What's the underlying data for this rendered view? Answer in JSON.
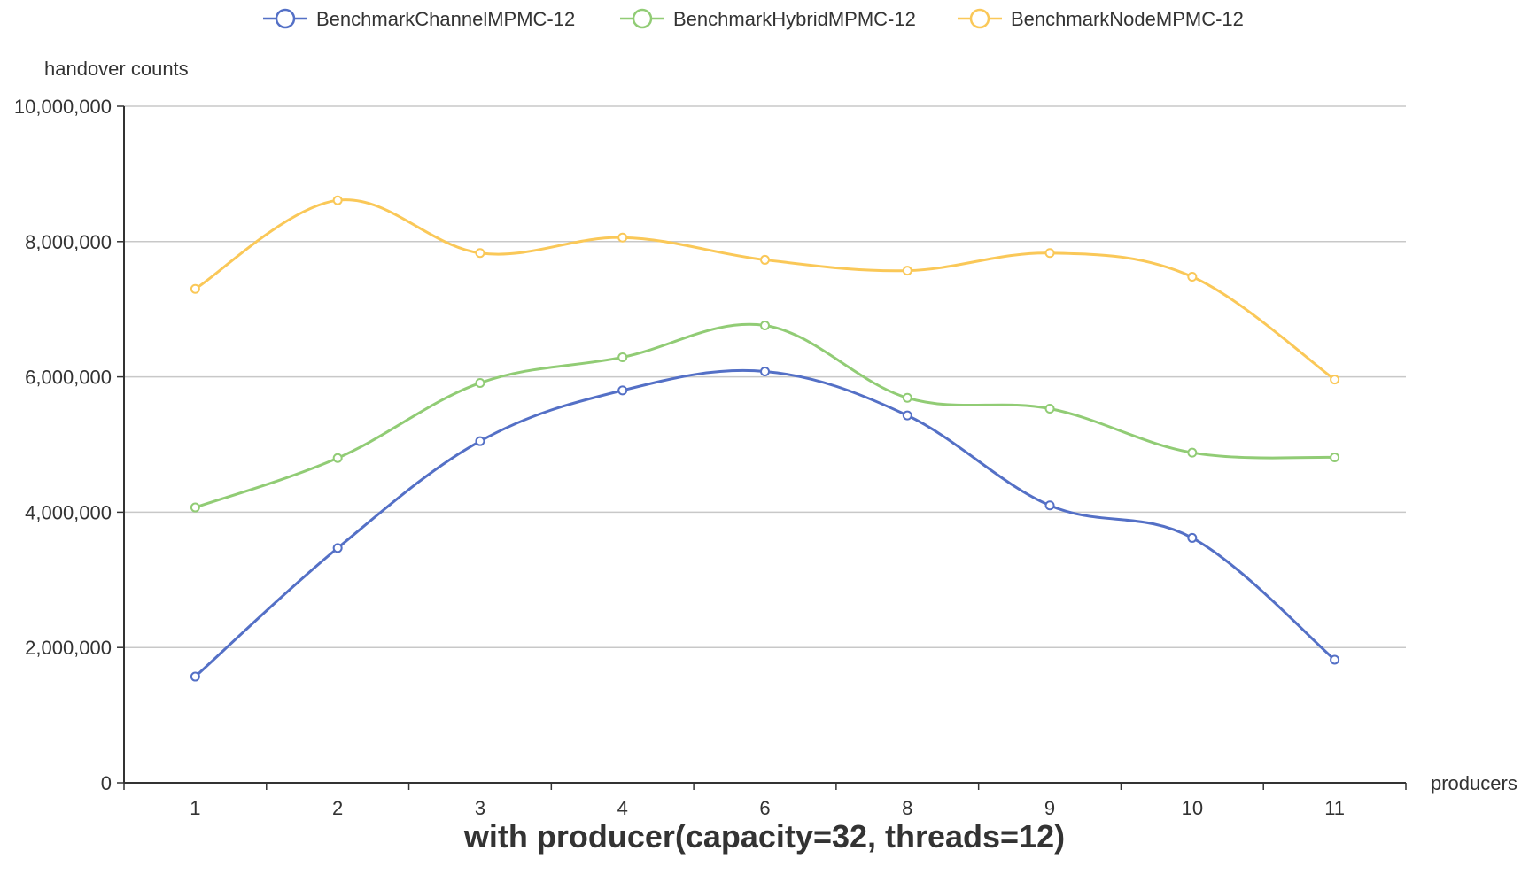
{
  "chart_data": {
    "type": "line",
    "smooth": true,
    "title": "with producer(capacity=32, threads=12)",
    "xlabel": "producers",
    "ylabel": "handover counts",
    "categories": [
      "1",
      "2",
      "3",
      "4",
      "6",
      "8",
      "9",
      "10",
      "11"
    ],
    "ylim": [
      0,
      10000000
    ],
    "yticks": [
      0,
      2000000,
      4000000,
      6000000,
      8000000,
      10000000
    ],
    "ytick_labels": [
      "0",
      "2,000,000",
      "4,000,000",
      "6,000,000",
      "8,000,000",
      "10,000,000"
    ],
    "grid": true,
    "legend_position": "top-center",
    "series": [
      {
        "name": "BenchmarkChannelMPMC-12",
        "color": "#5470c6",
        "values": [
          1570000,
          3470000,
          5050000,
          5800000,
          6080000,
          5430000,
          4100000,
          3620000,
          1820000
        ]
      },
      {
        "name": "BenchmarkHybridMPMC-12",
        "color": "#91cc75",
        "values": [
          4070000,
          4800000,
          5910000,
          6290000,
          6760000,
          5690000,
          5530000,
          4880000,
          4810000
        ]
      },
      {
        "name": "BenchmarkNodeMPMC-12",
        "color": "#fac858",
        "values": [
          7300000,
          8610000,
          7830000,
          8060000,
          7730000,
          7570000,
          7830000,
          7480000,
          5960000
        ]
      }
    ]
  }
}
